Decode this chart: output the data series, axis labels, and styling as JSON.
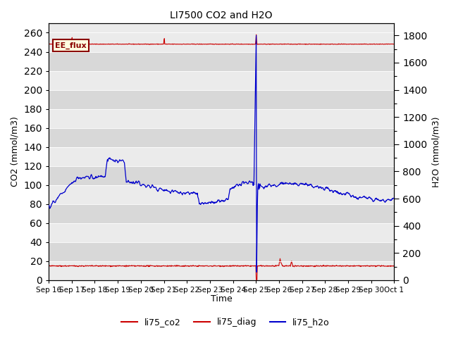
{
  "title": "LI7500 CO2 and H2O",
  "xlabel": "Time",
  "ylabel_left": "CO2 (mmol/m3)",
  "ylabel_right": "H2O (mmol/m3)",
  "annotation": "EE_flux",
  "ylim_left": [
    0,
    270
  ],
  "ylim_right": [
    0,
    1890
  ],
  "yticks_left": [
    0,
    20,
    40,
    60,
    80,
    100,
    120,
    140,
    160,
    180,
    200,
    220,
    240,
    260
  ],
  "yticks_right": [
    0,
    200,
    400,
    600,
    800,
    1000,
    1200,
    1400,
    1600,
    1800
  ],
  "bg_color_light": "#ebebeb",
  "bg_color_dark": "#d8d8d8",
  "co2_color": "#cc0000",
  "diag_color": "#cc0000",
  "h2o_color": "#0000cc",
  "legend_entries": [
    "li75_co2",
    "li75_diag",
    "li75_h2o"
  ],
  "day_labels": [
    "Sep 16",
    "Sep 17",
    "Sep 18",
    "Sep 19",
    "Sep 20",
    "Sep 21",
    "Sep 22",
    "Sep 23",
    "Sep 24",
    "Sep 25",
    "Sep 26",
    "Sep 27",
    "Sep 28",
    "Sep 29",
    "Sep 30",
    "Oct 1"
  ],
  "n_points": 900,
  "spike_day": 9,
  "n_days": 15,
  "figsize": [
    6.4,
    4.8
  ],
  "dpi": 100
}
